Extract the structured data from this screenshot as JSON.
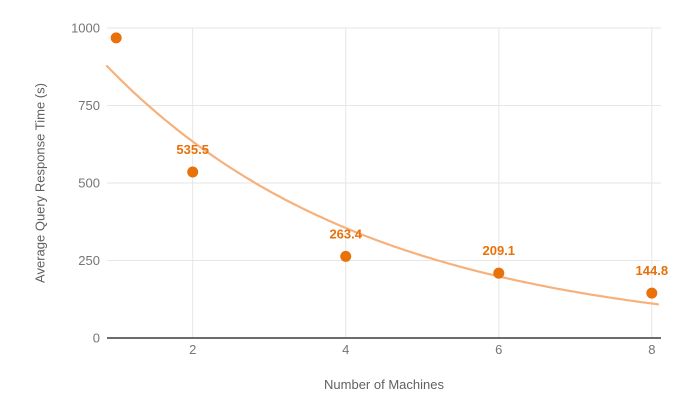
{
  "chart_data": {
    "type": "scatter",
    "title": "",
    "xlabel": "Number of Machines",
    "ylabel": "Average Query Response Time (s)",
    "x_ticks": [
      2,
      4,
      6,
      8
    ],
    "y_ticks": [
      0,
      250,
      500,
      750,
      1000
    ],
    "xlim": [
      0.88,
      8.12
    ],
    "ylim": [
      0,
      1000
    ],
    "grid": true,
    "legend": false,
    "series": [
      {
        "color": "#e8710a",
        "points": [
          {
            "x": 1,
            "y": 968,
            "label": ""
          },
          {
            "x": 2,
            "y": 535.5,
            "label": "535.5"
          },
          {
            "x": 4,
            "y": 263.4,
            "label": "263.4"
          },
          {
            "x": 6,
            "y": 209.1,
            "label": "209.1"
          },
          {
            "x": 8,
            "y": 144.8,
            "label": "144.8"
          }
        ]
      }
    ],
    "trendline": {
      "type": "exponential",
      "a": 1132,
      "b": 0.29,
      "color": "#f6b17c"
    },
    "colors": {
      "point": "#e8710a",
      "data_label": "#e8710a",
      "trendline": "#f6b17c",
      "gridline": "#e6e6e6",
      "axis_line": "#3b3b3b",
      "tick_label": "#757575",
      "axis_title": "#616161",
      "background": "#ffffff"
    }
  }
}
